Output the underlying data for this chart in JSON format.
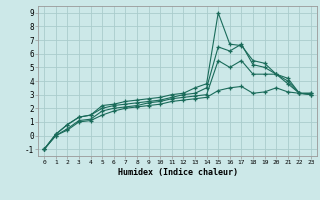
{
  "title": "",
  "xlabel": "Humidex (Indice chaleur)",
  "bg_color": "#cce8e8",
  "grid_color": "#aacccc",
  "line_color": "#1a6b5a",
  "xlim": [
    -0.5,
    23.5
  ],
  "ylim": [
    -1.5,
    9.5
  ],
  "xticks": [
    0,
    1,
    2,
    3,
    4,
    5,
    6,
    7,
    8,
    9,
    10,
    11,
    12,
    13,
    14,
    15,
    16,
    17,
    18,
    19,
    20,
    21,
    22,
    23
  ],
  "yticks": [
    -1,
    0,
    1,
    2,
    3,
    4,
    5,
    6,
    7,
    8,
    9
  ],
  "line1_x": [
    0,
    1,
    2,
    3,
    4,
    5,
    6,
    7,
    8,
    9,
    10,
    11,
    12,
    13,
    14,
    15,
    16,
    17,
    18,
    19,
    20,
    21,
    22,
    23
  ],
  "line1_y": [
    -1.0,
    0.1,
    0.8,
    1.35,
    1.5,
    2.2,
    2.3,
    2.5,
    2.6,
    2.7,
    2.8,
    3.0,
    3.1,
    3.5,
    3.8,
    9.0,
    6.7,
    6.6,
    5.5,
    5.3,
    4.5,
    4.0,
    3.1,
    3.0
  ],
  "line2_x": [
    0,
    1,
    2,
    3,
    4,
    5,
    6,
    7,
    8,
    9,
    10,
    11,
    12,
    13,
    14,
    15,
    16,
    17,
    18,
    19,
    20,
    21,
    22,
    23
  ],
  "line2_y": [
    -1.0,
    0.1,
    0.8,
    1.35,
    1.5,
    2.0,
    2.2,
    2.3,
    2.4,
    2.5,
    2.6,
    2.8,
    3.0,
    3.1,
    3.5,
    6.5,
    6.2,
    6.7,
    5.2,
    5.0,
    4.5,
    4.2,
    3.1,
    3.0
  ],
  "line3_x": [
    0,
    1,
    2,
    3,
    4,
    5,
    6,
    7,
    8,
    9,
    10,
    11,
    12,
    13,
    14,
    15,
    16,
    17,
    18,
    19,
    20,
    21,
    22,
    23
  ],
  "line3_y": [
    -1.0,
    0.0,
    0.5,
    1.1,
    1.2,
    1.8,
    2.0,
    2.1,
    2.2,
    2.4,
    2.5,
    2.7,
    2.8,
    2.9,
    3.0,
    5.5,
    5.0,
    5.5,
    4.5,
    4.5,
    4.5,
    3.8,
    3.1,
    3.1
  ],
  "line4_x": [
    0,
    1,
    2,
    3,
    4,
    5,
    6,
    7,
    8,
    9,
    10,
    11,
    12,
    13,
    14,
    15,
    16,
    17,
    18,
    19,
    20,
    21,
    22,
    23
  ],
  "line4_y": [
    -1.0,
    0.0,
    0.4,
    1.0,
    1.1,
    1.5,
    1.8,
    2.0,
    2.1,
    2.2,
    2.3,
    2.5,
    2.6,
    2.7,
    2.8,
    3.3,
    3.5,
    3.6,
    3.1,
    3.2,
    3.5,
    3.2,
    3.1,
    3.1
  ]
}
